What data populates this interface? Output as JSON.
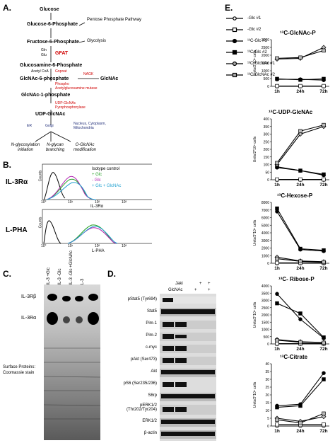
{
  "panel_labels": {
    "a": "A.",
    "b": "B.",
    "c": "C.",
    "d": "D.",
    "e": "E."
  },
  "pathway": {
    "glucose": "Glucose",
    "g6p": "Glucose-6-Phosphate",
    "f6p": "Fructose-6-Phosphate",
    "ppp": "Pentose Phosphate Pathway",
    "glycolysis": "Glycolysis",
    "gln": "Gln",
    "glu": "Glu",
    "gfat": "GFAT",
    "glcn6p": "Glucosamine-6-Phosphate",
    "acetylcoa": "Acetyl CoA",
    "gnpnat": "Gnpnat",
    "nagk": "NAGK",
    "glcnac6p": "GlcNAc-6-phosphate",
    "glcnac": "GlcNAc",
    "phospho_mutase_1": "Phospho",
    "phospho_mutase_2": "Acetylglucosamine mutase",
    "glcnac1p": "GlcNAc-1-phosphate",
    "udp_enzyme_1": "UDP-GlcNAc",
    "udp_enzyme_2": "Pyrophosphorylase",
    "udpglcnac": "UDP-GlcNAc",
    "er": "ER",
    "golgi": "Golgi",
    "nucleus": "Nucleus, Cytoplasm, Mitochondria",
    "nglyco": "N-glycosylation initiation",
    "nglycan": "N-glycan branching",
    "oglcnac": "O-GlcNAc modification"
  },
  "flow": {
    "il3ra_label": "IL-3Rα",
    "lpha_label": "L-PHA",
    "legend": [
      "Isotype control",
      "+ Glc",
      "- Glc",
      "+ Glc + GlcNAc"
    ],
    "legend_colors": [
      "#000000",
      "#22a022",
      "#b020b0",
      "#20a0d0"
    ],
    "xlabel_top": "IL-3Rα",
    "xlabel_bottom": "L-PHA",
    "ylabel": "Counts",
    "ticks": [
      "10°",
      "10¹",
      "10²",
      "10³"
    ]
  },
  "gel": {
    "lanes": [
      "+IL-3 +Glc",
      "+IL-3 -Glc",
      "+IL-3 -Glc +GlcNAc",
      "-IL-3"
    ],
    "il3rb": "IL-3Rβ",
    "il3ra": "IL-3Rα",
    "surface_1": "Surface Proteins:",
    "surface_2": "Coomassie stain"
  },
  "blot": {
    "jaki": "Jaki",
    "glcnac": "GlcNAc",
    "jaki_marks": [
      "",
      "",
      "+",
      "+"
    ],
    "glcnac_marks": [
      "",
      "+",
      "",
      "+"
    ],
    "rows": [
      "pStat5 (Tyr694)",
      "Stat5",
      "Pim-1",
      "Pim-2",
      "c-myc",
      "pAkt (Ser473)",
      "Akt",
      "pS6 (Ser235/236)",
      "S6rp",
      "pERK1/2 (Thr202/Tyr204)",
      "ERK1/2",
      "β-actin"
    ]
  },
  "legend_e": [
    "-Glc #1",
    "-Glc #2",
    "¹³C-Glc #1",
    "¹³C-Glc #2",
    "¹³C-GlcNAc #1",
    "¹³C-GlcNAc #2"
  ],
  "chart_data": [
    {
      "type": "line",
      "title": "¹³C-GlcNAc-P",
      "ylabel": "Units/2*10⁶ cells",
      "categories": [
        "1h",
        "24h",
        "72h"
      ],
      "ylim": [
        0,
        3000
      ],
      "yticks": [
        0,
        500,
        1000,
        1500,
        2000,
        2500,
        3000
      ],
      "series": [
        {
          "name": "-Glc #1",
          "values": [
            0,
            0,
            0
          ]
        },
        {
          "name": "-Glc #2",
          "values": [
            20,
            20,
            20
          ]
        },
        {
          "name": "¹³C-Glc #1",
          "values": [
            450,
            450,
            400
          ]
        },
        {
          "name": "¹³C-Glc #2",
          "values": [
            480,
            420,
            480
          ]
        },
        {
          "name": "¹³C-GlcNAc #1",
          "values": [
            1750,
            1800,
            2500
          ]
        },
        {
          "name": "¹³C-GlcNAc #2",
          "values": [
            1800,
            1850,
            2300
          ]
        }
      ]
    },
    {
      "type": "line",
      "title": "¹³C-UDP-GlcNAc",
      "ylabel": "Units/2*10⁶ cells",
      "categories": [
        "1h",
        "24h",
        "72h"
      ],
      "ylim": [
        0,
        400
      ],
      "yticks": [
        0,
        50,
        100,
        150,
        200,
        250,
        300,
        350,
        400
      ],
      "series": [
        {
          "name": "-Glc #1",
          "values": [
            0,
            0,
            0
          ]
        },
        {
          "name": "-Glc #2",
          "values": [
            2,
            2,
            2
          ]
        },
        {
          "name": "¹³C-Glc #1",
          "values": [
            80,
            60,
            30
          ]
        },
        {
          "name": "¹³C-Glc #2",
          "values": [
            85,
            60,
            35
          ]
        },
        {
          "name": "¹³C-GlcNAc #1",
          "values": [
            100,
            300,
            350
          ]
        },
        {
          "name": "¹³C-GlcNAc #2",
          "values": [
            110,
            320,
            360
          ]
        }
      ]
    },
    {
      "type": "line",
      "title": "¹³C-Hexose-P",
      "ylabel": "Units/2*10⁶ cells",
      "categories": [
        "1h",
        "24h",
        "72h"
      ],
      "ylim": [
        0,
        8000
      ],
      "yticks": [
        0,
        1000,
        2000,
        3000,
        4000,
        5000,
        6000,
        7000,
        8000
      ],
      "series": [
        {
          "name": "-Glc #1",
          "values": [
            0,
            0,
            0
          ]
        },
        {
          "name": "-Glc #2",
          "values": [
            50,
            50,
            50
          ]
        },
        {
          "name": "¹³C-Glc #1",
          "values": [
            6800,
            1800,
            1600
          ]
        },
        {
          "name": "¹³C-Glc #2",
          "values": [
            7200,
            1900,
            1700
          ]
        },
        {
          "name": "¹³C-GlcNAc #1",
          "values": [
            800,
            300,
            200
          ]
        },
        {
          "name": "¹³C-GlcNAc #2",
          "values": [
            600,
            250,
            150
          ]
        }
      ]
    },
    {
      "type": "line",
      "title": "¹³C- Ribose-P",
      "ylabel": "Units/2*10⁶ cells",
      "categories": [
        "1h",
        "24h",
        "72h"
      ],
      "ylim": [
        0,
        4000
      ],
      "yticks": [
        0,
        500,
        1000,
        1500,
        2000,
        2500,
        3000,
        3500,
        4000
      ],
      "series": [
        {
          "name": "-Glc #1",
          "values": [
            0,
            0,
            0
          ]
        },
        {
          "name": "-Glc #2",
          "values": [
            20,
            20,
            20
          ]
        },
        {
          "name": "¹³C-Glc #1",
          "values": [
            3450,
            1700,
            400
          ]
        },
        {
          "name": "¹³C-Glc #2",
          "values": [
            2800,
            2100,
            450
          ]
        },
        {
          "name": "¹³C-GlcNAc #1",
          "values": [
            300,
            150,
            100
          ]
        },
        {
          "name": "¹³C-GlcNAc #2",
          "values": [
            250,
            120,
            80
          ]
        }
      ]
    },
    {
      "type": "line",
      "title": "¹³C-Citrate",
      "ylabel": "Units/2*10⁶ cells",
      "categories": [
        "1h",
        "24h",
        "72h"
      ],
      "ylim": [
        0,
        40
      ],
      "yticks": [
        0,
        5,
        10,
        15,
        20,
        25,
        30,
        35,
        40
      ],
      "series": [
        {
          "name": "-Glc #1",
          "values": [
            0,
            0,
            0
          ]
        },
        {
          "name": "-Glc #2",
          "values": [
            1,
            1,
            1
          ]
        },
        {
          "name": "¹³C-Glc #1",
          "values": [
            13,
            14,
            34
          ]
        },
        {
          "name": "¹³C-Glc #2",
          "values": [
            12,
            13,
            30
          ]
        },
        {
          "name": "¹³C-GlcNAc #1",
          "values": [
            5,
            3,
            6
          ]
        },
        {
          "name": "¹³C-GlcNAc #2",
          "values": [
            4,
            2,
            8
          ]
        }
      ]
    }
  ]
}
